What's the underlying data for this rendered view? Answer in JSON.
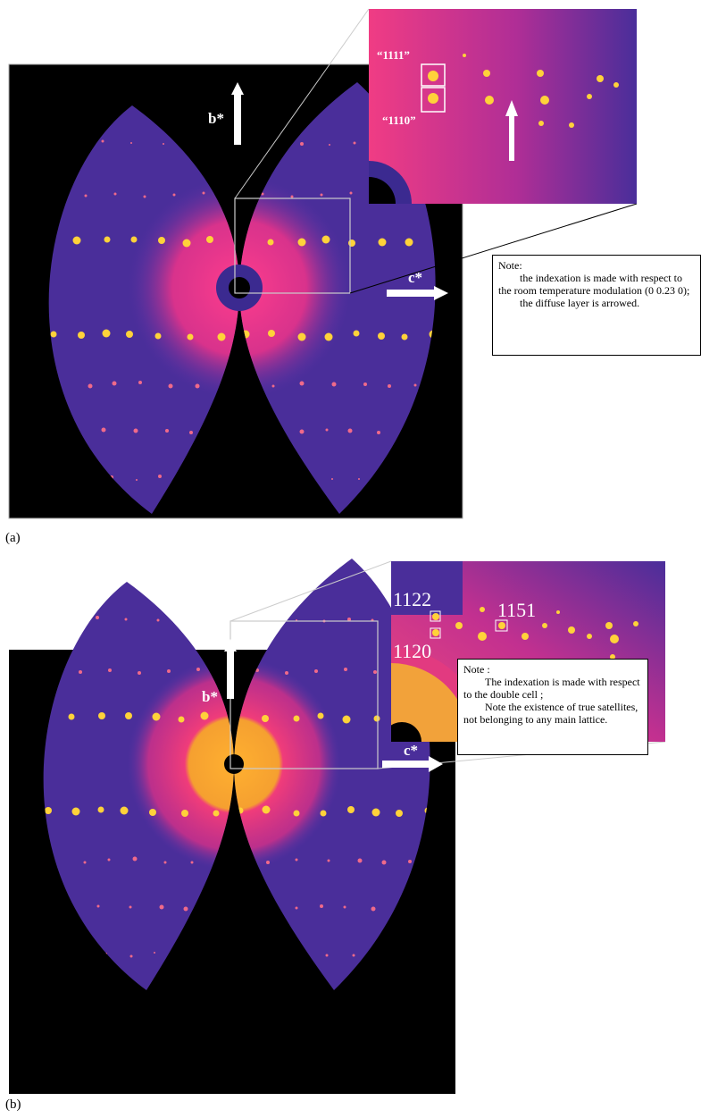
{
  "panels": [
    {
      "label": "(a)",
      "axis_b": "b*",
      "axis_c": "c*",
      "inset_labels": [
        "“1111”",
        "“1110”"
      ],
      "note": {
        "heading": "Note:",
        "paragraphs": [
          "the indexation is made with respect to the room temperature modulation (0 0.23 0);",
          "the diffuse layer is arrowed."
        ]
      }
    },
    {
      "label": "(b)",
      "axis_b": "b*",
      "axis_c": "c*",
      "inset_labels": [
        "1122",
        "1120",
        "1151"
      ],
      "note": {
        "heading": "Note :",
        "paragraphs": [
          "The indexation is made with respect to the double cell ;",
          "Note the existence of true satellites, not belonging to any main lattice."
        ]
      }
    }
  ]
}
